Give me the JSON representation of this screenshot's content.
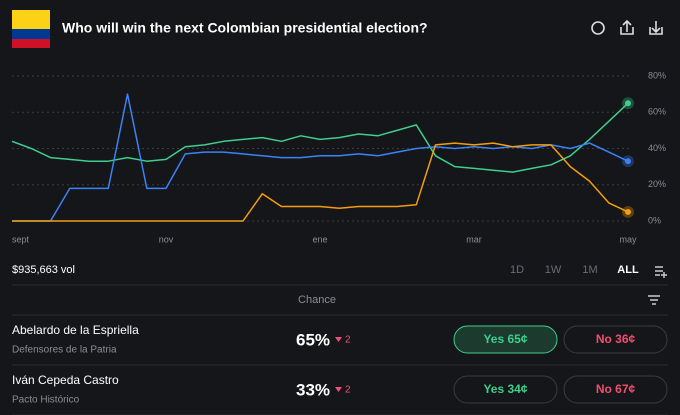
{
  "header": {
    "title": "Who will win the next Colombian presidential election?"
  },
  "chart_data": {
    "type": "line",
    "categories": [
      "sept",
      null,
      null,
      null,
      null,
      null,
      null,
      null,
      "nov",
      null,
      null,
      null,
      null,
      null,
      null,
      null,
      "ene",
      null,
      null,
      null,
      null,
      null,
      null,
      null,
      "mar",
      null,
      null,
      null,
      null,
      null,
      null,
      null,
      "may"
    ],
    "series": [
      {
        "color": "#3ecf8e",
        "values": [
          44,
          40,
          35,
          34,
          33,
          33,
          35,
          33,
          34,
          41,
          42,
          44,
          45,
          46,
          44,
          47,
          45,
          46,
          48,
          47,
          50,
          53,
          36,
          30,
          29,
          28,
          27,
          29,
          31,
          36,
          45,
          55,
          65
        ]
      },
      {
        "color": "#3b82f6",
        "values": [
          0,
          0,
          0,
          18,
          18,
          18,
          70,
          18,
          18,
          37,
          38,
          38,
          37,
          36,
          35,
          35,
          36,
          36,
          37,
          36,
          38,
          40,
          41,
          40,
          41,
          40,
          41,
          40,
          42,
          40,
          43,
          38,
          33
        ]
      },
      {
        "color": "#f59e0b",
        "values": [
          0,
          0,
          0,
          0,
          0,
          0,
          0,
          0,
          0,
          0,
          0,
          0,
          0,
          15,
          8,
          8,
          8,
          7,
          8,
          8,
          8,
          9,
          42,
          43,
          42,
          43,
          41,
          42,
          42,
          30,
          22,
          10,
          5
        ]
      }
    ],
    "ylim": [
      0,
      80
    ],
    "yticks": [
      {
        "value": 0,
        "label": "0%"
      },
      {
        "value": 20,
        "label": "20%"
      },
      {
        "value": 40,
        "label": "40%"
      },
      {
        "value": 60,
        "label": "60%"
      },
      {
        "value": 80,
        "label": "80%"
      }
    ],
    "grid": true
  },
  "volume": "$935,663 vol",
  "timeframes": [
    "1D",
    "1W",
    "1M",
    "ALL"
  ],
  "column_header": "Chance",
  "outcomes": [
    {
      "name": "Abelardo de la Espriella",
      "party": "Defensores de la Patria",
      "chance": "65%",
      "change": "2",
      "yes": "Yes 65¢",
      "no": "No 36¢"
    },
    {
      "name": "Iván Cepeda Castro",
      "party": "Pacto Histórico",
      "chance": "33%",
      "change": "2",
      "yes": "Yes 34¢",
      "no": "No 67¢"
    }
  ]
}
